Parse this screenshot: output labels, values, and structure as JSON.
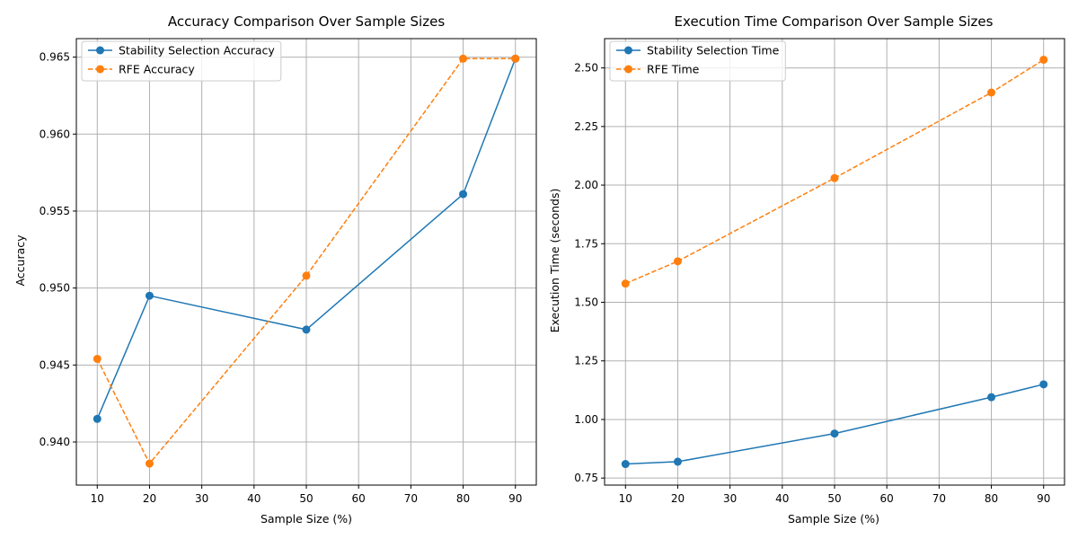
{
  "chart_data": [
    {
      "type": "line",
      "title": "Accuracy Comparison Over Sample Sizes",
      "xlabel": "Sample Size (%)",
      "ylabel": "Accuracy",
      "x": [
        10,
        20,
        50,
        80,
        90
      ],
      "xlim": [
        6,
        94
      ],
      "ylim": [
        0.9372,
        0.9662
      ],
      "xticks": [
        10,
        20,
        30,
        40,
        50,
        60,
        70,
        80,
        90
      ],
      "yticks": [
        0.94,
        0.945,
        0.95,
        0.955,
        0.96,
        0.965
      ],
      "ytick_decimals": 3,
      "grid": true,
      "legend_position": "top-left",
      "series": [
        {
          "name": "Stability Selection Accuracy",
          "values": [
            0.9415,
            0.9495,
            0.9473,
            0.9561,
            0.9649
          ],
          "color": "#1f77b4",
          "style": "solid",
          "marker": "circle"
        },
        {
          "name": "RFE Accuracy",
          "values": [
            0.9454,
            0.9386,
            0.9508,
            0.9649,
            0.9649
          ],
          "color": "#ff7f0e",
          "style": "dashed",
          "marker": "circle"
        }
      ]
    },
    {
      "type": "line",
      "title": "Execution Time Comparison Over Sample Sizes",
      "xlabel": "Sample Size (%)",
      "ylabel": "Execution Time (seconds)",
      "x": [
        10,
        20,
        50,
        80,
        90
      ],
      "xlim": [
        6,
        94
      ],
      "ylim": [
        0.72,
        2.625
      ],
      "xticks": [
        10,
        20,
        30,
        40,
        50,
        60,
        70,
        80,
        90
      ],
      "yticks": [
        0.75,
        1.0,
        1.25,
        1.5,
        1.75,
        2.0,
        2.25,
        2.5
      ],
      "ytick_decimals": 2,
      "grid": true,
      "legend_position": "top-left",
      "series": [
        {
          "name": "Stability Selection Time",
          "values": [
            0.81,
            0.82,
            0.94,
            1.095,
            1.15
          ],
          "color": "#1f77b4",
          "style": "solid",
          "marker": "circle"
        },
        {
          "name": "RFE Time",
          "values": [
            1.58,
            1.675,
            2.03,
            2.395,
            2.535
          ],
          "color": "#ff7f0e",
          "style": "dashed",
          "marker": "circle"
        }
      ]
    }
  ]
}
